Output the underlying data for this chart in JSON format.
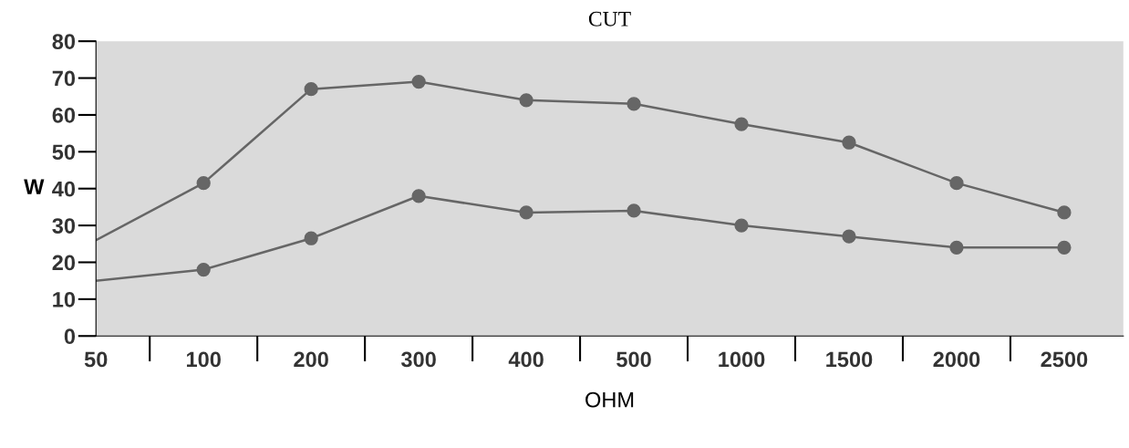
{
  "chart_data": {
    "type": "line",
    "title": "CUT",
    "xlabel": "OHM",
    "ylabel": "W",
    "categories": [
      "50",
      "100",
      "200",
      "300",
      "400",
      "500",
      "1000",
      "1500",
      "2000",
      "2500"
    ],
    "series": [
      {
        "color": "#666666",
        "values": [
          26,
          41.5,
          67,
          69,
          64,
          63,
          57.5,
          52.5,
          41.5,
          33.5
        ]
      },
      {
        "color": "#666666",
        "values": [
          15,
          18,
          26.5,
          38,
          33.5,
          34,
          30,
          27,
          24,
          24
        ]
      }
    ],
    "ylim": [
      0,
      80
    ],
    "yticks": [
      0,
      10,
      20,
      30,
      40,
      50,
      60,
      70,
      80
    ],
    "grid": false,
    "legend": false,
    "marker": "circle",
    "line_style": "solid"
  }
}
